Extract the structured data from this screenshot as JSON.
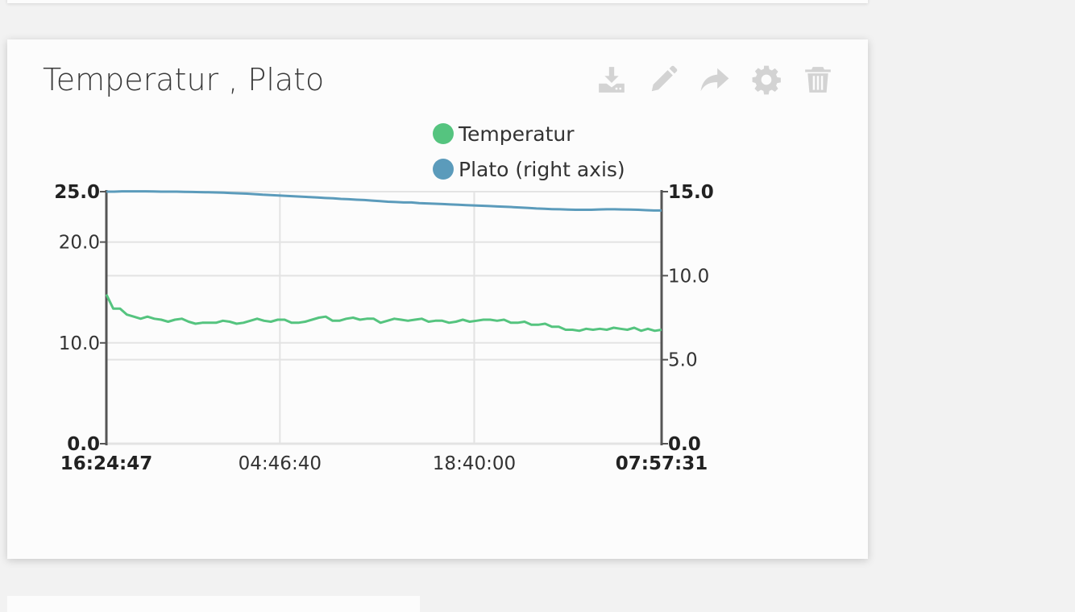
{
  "card": {
    "title": "Temperatur , Plato",
    "toolbar": [
      {
        "name": "download-icon"
      },
      {
        "name": "pencil-icon"
      },
      {
        "name": "share-icon"
      },
      {
        "name": "gear-icon"
      },
      {
        "name": "trash-icon"
      }
    ]
  },
  "chart_data": {
    "type": "line",
    "title": "",
    "legend_position": "top-center",
    "grid": true,
    "x_ticks": [
      "16:24:47",
      "04:46:40",
      "18:40:00",
      "07:57:31"
    ],
    "x_tick_fracs": [
      0,
      0.3125,
      0.6625,
      1
    ],
    "y_left": {
      "min": 0,
      "max": 25,
      "ticks": [
        "0.0",
        "10.0",
        "20.0",
        "25.0"
      ],
      "tick_values": [
        0,
        10,
        20,
        25
      ]
    },
    "y_right": {
      "min": 0,
      "max": 15,
      "ticks": [
        "0.0",
        "5.0",
        "10.0",
        "15.0"
      ],
      "tick_values": [
        0,
        5,
        10,
        15
      ]
    },
    "series": [
      {
        "name": "Temperatur",
        "axis": "left",
        "color": "#55c47f",
        "values": [
          14.8,
          13.4,
          13.4,
          12.8,
          12.6,
          12.4,
          12.6,
          12.4,
          12.3,
          12.1,
          12.3,
          12.4,
          12.1,
          11.9,
          12.0,
          12.0,
          12.0,
          12.2,
          12.1,
          11.9,
          12.0,
          12.2,
          12.4,
          12.2,
          12.1,
          12.3,
          12.3,
          12.0,
          12.0,
          12.1,
          12.3,
          12.5,
          12.6,
          12.2,
          12.2,
          12.4,
          12.5,
          12.3,
          12.4,
          12.4,
          12.0,
          12.2,
          12.4,
          12.3,
          12.2,
          12.3,
          12.4,
          12.1,
          12.2,
          12.2,
          12.0,
          12.1,
          12.3,
          12.1,
          12.2,
          12.3,
          12.3,
          12.2,
          12.3,
          12.0,
          12.0,
          12.1,
          11.8,
          11.8,
          11.9,
          11.6,
          11.6,
          11.3,
          11.3,
          11.2,
          11.4,
          11.3,
          11.4,
          11.3,
          11.5,
          11.4,
          11.3,
          11.5,
          11.2,
          11.4,
          11.2,
          11.3
        ]
      },
      {
        "name": "Plato (right axis)",
        "axis": "right",
        "color": "#5b9bbb",
        "values": [
          15.0,
          15.0,
          15.02,
          15.02,
          15.02,
          15.02,
          15.01,
          15.0,
          15.0,
          15.0,
          14.99,
          14.98,
          14.97,
          14.96,
          14.95,
          14.94,
          14.92,
          14.9,
          14.88,
          14.85,
          14.82,
          14.8,
          14.77,
          14.75,
          14.72,
          14.7,
          14.68,
          14.65,
          14.62,
          14.6,
          14.57,
          14.55,
          14.52,
          14.5,
          14.47,
          14.44,
          14.4,
          14.38,
          14.36,
          14.36,
          14.32,
          14.3,
          14.28,
          14.26,
          14.24,
          14.22,
          14.2,
          14.18,
          14.16,
          14.14,
          14.12,
          14.1,
          14.08,
          14.05,
          14.03,
          14.0,
          13.98,
          13.96,
          13.95,
          13.93,
          13.92,
          13.92,
          13.92,
          13.94,
          13.95,
          13.95,
          13.94,
          13.93,
          13.92,
          13.9,
          13.88,
          13.88
        ]
      }
    ]
  }
}
